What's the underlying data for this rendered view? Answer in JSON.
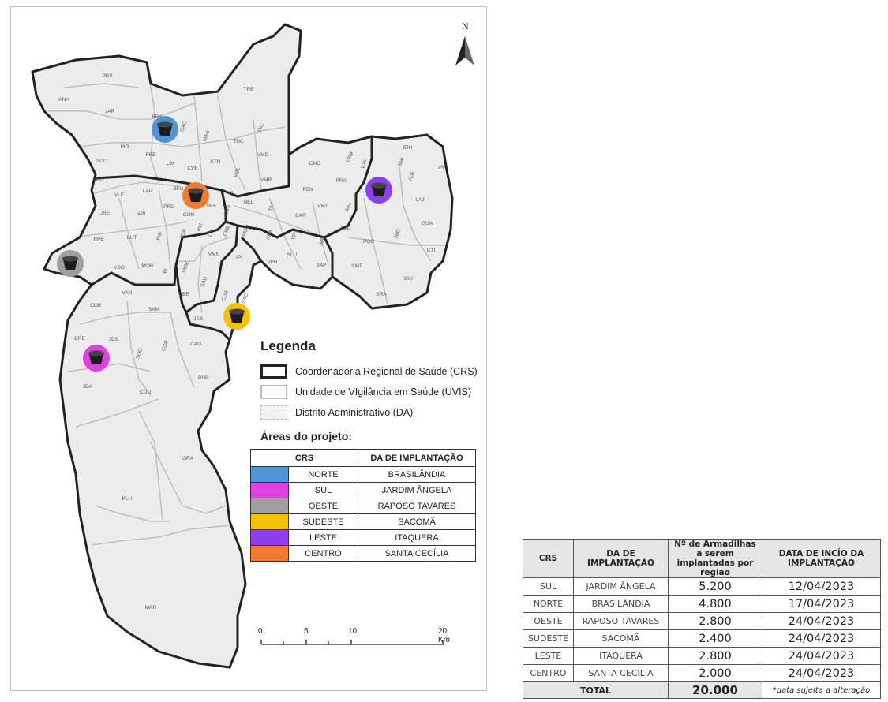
{
  "map": {
    "north_label": "N",
    "district_labels": [
      "PRS",
      "ANH",
      "JAR",
      "BRA",
      "CAC",
      "TRE",
      "PIR",
      "MAN",
      "TUC",
      "JAC",
      "SDO",
      "FRE",
      "LIM",
      "STN",
      "VMD",
      "JAG",
      "CVE",
      "VGL",
      "VMR",
      "JDH",
      "CNG",
      "ERM",
      "VJA",
      "SMI",
      "VCR",
      "IPA",
      "VLE",
      "LAP",
      "BFU",
      "PRI",
      "PEN",
      "PRA",
      "LAJ",
      "JRE",
      "API",
      "PRD",
      "CON",
      "SEE",
      "BRS",
      "BEL",
      "TAT",
      "CAR",
      "VMT",
      "AAL",
      "GUA",
      "RPE",
      "BUT",
      "PIN",
      "JDP",
      "BVI",
      "LIB",
      "CMB",
      "MOO",
      "ARA",
      "VFO",
      "ARI",
      "CLD",
      "JBO",
      "MOR",
      "IBI",
      "VMN",
      "CTI",
      "VSO",
      "MOE",
      "IPI",
      "VPR",
      "SLU",
      "SAP",
      "PQC",
      "SMT",
      "IGU",
      "SAU",
      "CUR",
      "SAC",
      "SRA",
      "CLM",
      "VAN",
      "SAM",
      "CBE",
      "JAB",
      "JDS",
      "CRE",
      "CGR",
      "CAD",
      "SOC",
      "PDR",
      "JDA",
      "CDU",
      "GRA",
      "PLH",
      "MAR"
    ],
    "colors": {
      "norte": "#4f94d4",
      "sul": "#e040e0",
      "oeste": "#9e9e9e",
      "sudeste": "#f7c000",
      "leste": "#8c3ff0",
      "centro": "#ef7d2d"
    }
  },
  "legend": {
    "title": "Legenda",
    "items": [
      {
        "label": "Coordenadoria Regional de Saúde (CRS)",
        "style": "crs"
      },
      {
        "label": "Unidade de VIgilância em Saúde (UVIS)",
        "style": "uvis"
      },
      {
        "label": "Distrito Administrativo (DA)",
        "style": "da"
      }
    ],
    "project_title": "Áreas do projeto:"
  },
  "areas_table": {
    "headers": [
      "CRS",
      "DA DE IMPLANTAÇÃO"
    ],
    "rows": [
      {
        "crs": "NORTE",
        "da": "BRASILÂNDIA",
        "color": "#4f94d4"
      },
      {
        "crs": "SUL",
        "da": "JARDIM ÂNGELA",
        "color": "#e040e0"
      },
      {
        "crs": "OESTE",
        "da": "RAPOSO TAVARES",
        "color": "#9e9e9e"
      },
      {
        "crs": "SUDESTE",
        "da": "SACOMÃ",
        "color": "#f7c000"
      },
      {
        "crs": "LESTE",
        "da": "ITAQUERA",
        "color": "#8c3ff0"
      },
      {
        "crs": "CENTRO",
        "da": "SANTA CECÍLIA",
        "color": "#ef7d2d"
      }
    ]
  },
  "scale_bar": {
    "ticks": [
      "0",
      "5",
      "10",
      "20 Km"
    ]
  },
  "summary_table": {
    "headers": [
      "CRS",
      "DA DE IMPLANTAÇÃO",
      "Nº de Armadilhas a serem implantadas por região",
      "DATA DE INCÍO DA IMPLANTAÇÃO"
    ],
    "rows": [
      {
        "crs": "SUL",
        "da": "JARDIM ÂNGELA",
        "count": "5.200",
        "date": "12/04/2023"
      },
      {
        "crs": "NORTE",
        "da": "BRASILÂNDIA",
        "count": "4.800",
        "date": "17/04/2023"
      },
      {
        "crs": "OESTE",
        "da": "RAPOSO TAVARES",
        "count": "2.800",
        "date": "24/04/2023"
      },
      {
        "crs": "SUDESTE",
        "da": "SACOMÃ",
        "count": "2.400",
        "date": "24/04/2023"
      },
      {
        "crs": "LESTE",
        "da": "ITAQUERA",
        "count": "2.800",
        "date": "24/04/2023"
      },
      {
        "crs": "CENTRO",
        "da": "SANTA CECÍLIA",
        "count": "2.000",
        "date": "24/04/2023"
      }
    ],
    "total_label": "TOTAL",
    "total_value": "20.000",
    "note": "*data sujeita a alteração"
  }
}
